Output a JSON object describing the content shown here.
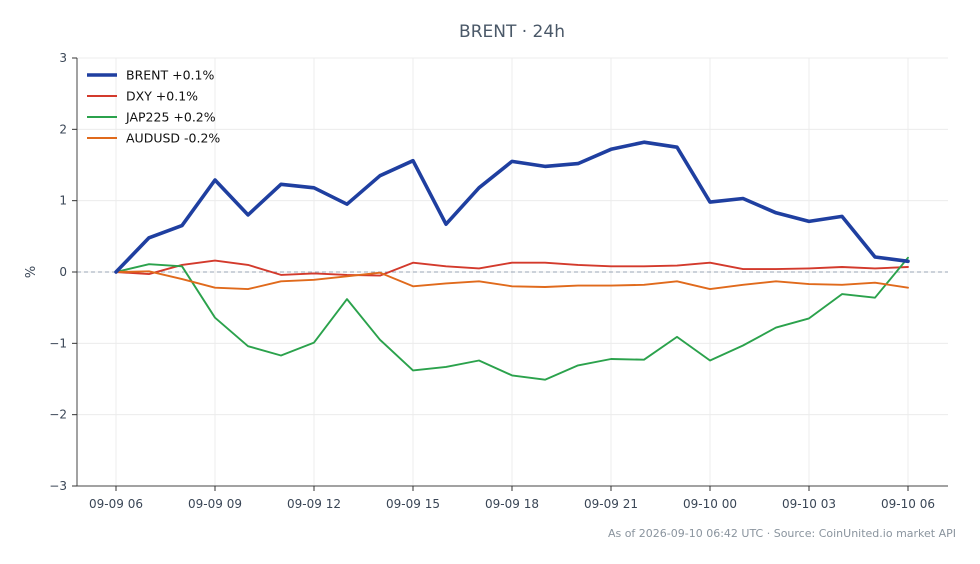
{
  "chart_data": {
    "type": "line",
    "title": "BRENT · 24h",
    "xlabel": "",
    "ylabel": "%",
    "ylim": [
      -3,
      3
    ],
    "yticks": [
      {
        "value": -3,
        "label": "−3"
      },
      {
        "value": -2,
        "label": "−2"
      },
      {
        "value": -1,
        "label": "−1"
      },
      {
        "value": 0,
        "label": "0"
      },
      {
        "value": 1,
        "label": "1"
      },
      {
        "value": 2,
        "label": "2"
      },
      {
        "value": 3,
        "label": "3"
      }
    ],
    "xticks": [
      {
        "index": 0,
        "label": "09-09 06"
      },
      {
        "index": 3,
        "label": "09-09 09"
      },
      {
        "index": 6,
        "label": "09-09 12"
      },
      {
        "index": 9,
        "label": "09-09 15"
      },
      {
        "index": 12,
        "label": "09-09 18"
      },
      {
        "index": 15,
        "label": "09-09 21"
      },
      {
        "index": 18,
        "label": "09-10 00"
      },
      {
        "index": 21,
        "label": "09-10 03"
      },
      {
        "index": 24,
        "label": "09-10 06"
      }
    ],
    "x": [
      "09-09 06",
      "09-09 07",
      "09-09 08",
      "09-09 09",
      "09-09 10",
      "09-09 11",
      "09-09 12",
      "09-09 13",
      "09-09 14",
      "09-09 15",
      "09-09 16",
      "09-09 17",
      "09-09 18",
      "09-09 19",
      "09-09 20",
      "09-09 21",
      "09-09 22",
      "09-09 23",
      "09-10 00",
      "09-10 01",
      "09-10 02",
      "09-10 03",
      "09-10 04",
      "09-10 05",
      "09-10 06"
    ],
    "grid": true,
    "zero_line": true,
    "legend_position": "top-left",
    "series": [
      {
        "name": "BRENT +0.1%",
        "color": "#1f3fa0",
        "width": "thick",
        "values": [
          0.0,
          0.48,
          0.65,
          1.29,
          0.8,
          1.23,
          1.18,
          0.95,
          1.35,
          1.56,
          0.67,
          1.18,
          1.55,
          1.48,
          1.52,
          1.72,
          1.82,
          1.75,
          0.98,
          1.03,
          0.83,
          0.71,
          0.78,
          0.21,
          0.15
        ]
      },
      {
        "name": "DXY +0.1%",
        "color": "#d33a2c",
        "width": "normal",
        "values": [
          0.0,
          -0.03,
          0.1,
          0.16,
          0.1,
          -0.04,
          -0.02,
          -0.04,
          -0.05,
          0.13,
          0.08,
          0.05,
          0.13,
          0.13,
          0.1,
          0.08,
          0.08,
          0.09,
          0.13,
          0.04,
          0.04,
          0.05,
          0.07,
          0.05,
          0.07
        ]
      },
      {
        "name": "JAP225 +0.2%",
        "color": "#2ba24c",
        "width": "normal",
        "values": [
          0.0,
          0.11,
          0.08,
          -0.64,
          -1.04,
          -1.17,
          -0.99,
          -0.38,
          -0.95,
          -1.38,
          -1.33,
          -1.24,
          -1.45,
          -1.51,
          -1.31,
          -1.22,
          -1.23,
          -0.91,
          -1.24,
          -1.03,
          -0.78,
          -0.65,
          -0.31,
          -0.36,
          0.2
        ]
      },
      {
        "name": "AUDUSD -0.2%",
        "color": "#e06a1c",
        "width": "normal",
        "values": [
          0.0,
          0.01,
          -0.1,
          -0.22,
          -0.24,
          -0.13,
          -0.11,
          -0.06,
          -0.01,
          -0.2,
          -0.16,
          -0.13,
          -0.2,
          -0.21,
          -0.19,
          -0.19,
          -0.18,
          -0.13,
          -0.24,
          -0.18,
          -0.13,
          -0.17,
          -0.18,
          -0.15,
          -0.22
        ]
      }
    ]
  },
  "footer": "As of 2026-09-10 06:42 UTC · Source: CoinUnited.io market API"
}
